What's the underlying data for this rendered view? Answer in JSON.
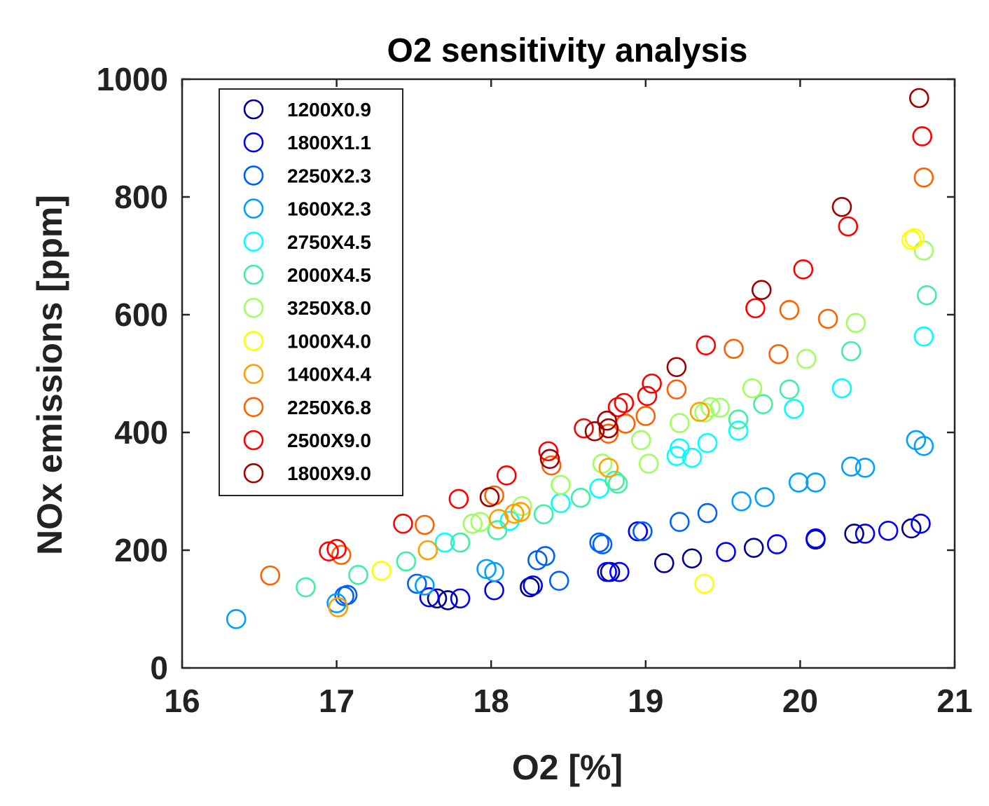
{
  "chart_data": {
    "type": "scatter",
    "title": "O2 sensitivity analysis",
    "xlabel": "O2 [%]",
    "ylabel": "NOx emissions [ppm]",
    "xlim": [
      16,
      21
    ],
    "ylim": [
      0,
      1000
    ],
    "xticks": [
      16,
      17,
      18,
      19,
      20,
      21
    ],
    "yticks": [
      0,
      200,
      400,
      600,
      800,
      1000
    ],
    "legend_position": "top-left",
    "grid": false,
    "marker": "open-circle",
    "series": [
      {
        "name": "1200X0.9",
        "color": "#00008f",
        "x": [
          17.65,
          17.72,
          18.25,
          18.77,
          19.12,
          19.3,
          19.7,
          20.1,
          20.35,
          20.72
        ],
        "y": [
          118,
          115,
          137,
          163,
          178,
          186,
          204,
          218,
          228,
          237
        ]
      },
      {
        "name": "1800X1.1",
        "color": "#0000ff",
        "x": [
          17.6,
          17.8,
          18.02,
          18.27,
          18.75,
          18.83,
          18.95,
          19.52,
          19.85,
          20.1,
          20.42,
          20.57,
          20.78
        ],
        "y": [
          120,
          118,
          132,
          140,
          163,
          163,
          232,
          197,
          210,
          220,
          228,
          233,
          245
        ]
      },
      {
        "name": "2250X2.3",
        "color": "#0060ff",
        "x": [
          17.05,
          17.07,
          17.52,
          18.3,
          18.35,
          18.44,
          18.7,
          18.72,
          18.98,
          19.22,
          19.4
        ],
        "y": [
          122,
          124,
          143,
          183,
          190,
          148,
          213,
          210,
          232,
          248,
          263
        ]
      },
      {
        "name": "1600X2.3",
        "color": "#00a0ff",
        "x": [
          16.35,
          17.0,
          17.57,
          17.97,
          18.02,
          19.62,
          19.77,
          19.99,
          20.1,
          20.33,
          20.42,
          20.75,
          20.8
        ],
        "y": [
          83,
          110,
          140,
          168,
          163,
          283,
          290,
          315,
          315,
          342,
          340,
          387,
          377
        ]
      },
      {
        "name": "2750X4.5",
        "color": "#00ffff",
        "x": [
          17.7,
          18.12,
          18.45,
          18.7,
          19.2,
          19.22,
          19.3,
          19.4,
          19.6,
          19.96,
          20.27,
          20.8
        ],
        "y": [
          213,
          250,
          280,
          305,
          360,
          373,
          357,
          382,
          403,
          440,
          475,
          563
        ]
      },
      {
        "name": "2000X4.5",
        "color": "#40f0a0",
        "x": [
          16.8,
          17.14,
          17.45,
          17.8,
          18.04,
          18.34,
          18.58,
          18.8,
          18.82,
          19.6,
          19.76,
          19.93,
          20.33,
          20.82
        ],
        "y": [
          137,
          158,
          181,
          213,
          234,
          261,
          289,
          318,
          313,
          422,
          448,
          473,
          538,
          633
        ]
      },
      {
        "name": "3250X8.0",
        "color": "#a0ff60",
        "x": [
          17.88,
          17.93,
          18.2,
          18.45,
          18.72,
          18.97,
          19.02,
          19.22,
          19.38,
          19.42,
          19.48,
          19.69,
          20.04,
          20.36,
          20.8
        ],
        "y": [
          245,
          248,
          275,
          311,
          347,
          387,
          347,
          416,
          434,
          443,
          442,
          475,
          525,
          586,
          709
        ]
      },
      {
        "name": "1000X4.0",
        "color": "#ffff00",
        "x": [
          17.29,
          19.38,
          20.72,
          20.74
        ],
        "y": [
          165,
          143,
          727,
          730
        ]
      },
      {
        "name": "1400X4.4",
        "color": "#ffa000",
        "x": [
          17.01,
          17.59,
          18.05,
          18.15,
          18.19,
          18.76,
          19.35
        ],
        "y": [
          103,
          200,
          253,
          262,
          265,
          340,
          435
        ]
      },
      {
        "name": "2250X6.8",
        "color": "#ff6000",
        "x": [
          16.57,
          17.03,
          17.57,
          18.02,
          18.39,
          18.76,
          18.87,
          19.0,
          19.2,
          19.57,
          19.86,
          19.93,
          20.18,
          20.8
        ],
        "y": [
          157,
          192,
          243,
          293,
          344,
          398,
          415,
          428,
          473,
          542,
          533,
          608,
          593,
          833
        ]
      },
      {
        "name": "2500X9.0",
        "color": "#ff0000",
        "x": [
          16.95,
          17.0,
          17.43,
          17.79,
          18.1,
          18.37,
          18.6,
          18.82,
          18.86,
          19.01,
          19.04,
          19.39,
          19.71,
          20.02,
          20.31,
          20.79
        ],
        "y": [
          198,
          202,
          245,
          287,
          327,
          368,
          407,
          443,
          450,
          462,
          483,
          548,
          611,
          677,
          750,
          903
        ]
      },
      {
        "name": "1800X9.0",
        "color": "#a00000",
        "x": [
          17.99,
          18.38,
          18.67,
          18.75,
          18.76,
          19.2,
          19.75,
          20.27,
          20.77
        ],
        "y": [
          290,
          355,
          402,
          420,
          407,
          511,
          642,
          783,
          968
        ]
      }
    ]
  }
}
